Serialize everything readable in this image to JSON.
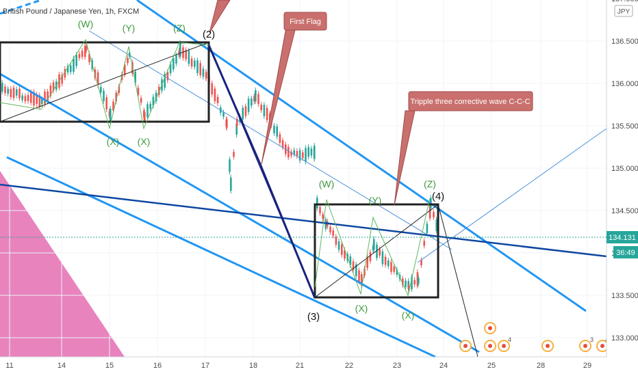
{
  "window": {
    "title": "British Pound / Japanese Yen, 1h, FXCM",
    "currency": "JPY",
    "timer": "36:49"
  },
  "chart_data": {
    "type": "candlestick",
    "symbol": "GBPJPY",
    "timeframe": "1h",
    "ylim": [
      132.75,
      137.05
    ],
    "yticks": [
      "137.000",
      "136.500",
      "136.000",
      "135.500",
      "135.000",
      "134.500",
      "134.000",
      "133.500",
      "133.000"
    ],
    "current_price": "134.131",
    "xticks": [
      "11",
      "14",
      "15",
      "16",
      "17",
      "18",
      "21",
      "22",
      "23",
      "24",
      "25",
      "28",
      "29"
    ],
    "waves_upper": [
      "(W)",
      "(Y)",
      "(Z)",
      "(X)",
      "(X)"
    ],
    "waves_lower": [
      "(W)",
      "(Y)",
      "(Z)",
      "(X)",
      "(X)"
    ],
    "impulse_labels": [
      "(2)",
      "(3)",
      "(4)"
    ],
    "annotations": [
      {
        "text": "First Flag"
      },
      {
        "text": "Tripple three corrective wave C-C-C"
      }
    ],
    "event_badges": [
      "4",
      "3",
      "4",
      "5"
    ],
    "colors": {
      "up": "#26a69a",
      "down": "#ef5350",
      "channel": "#2196f3",
      "trend": "#0d47a1",
      "callout": "#c9706e",
      "wave_text": "#3e9a3e",
      "pink": "#e05aa8"
    }
  }
}
